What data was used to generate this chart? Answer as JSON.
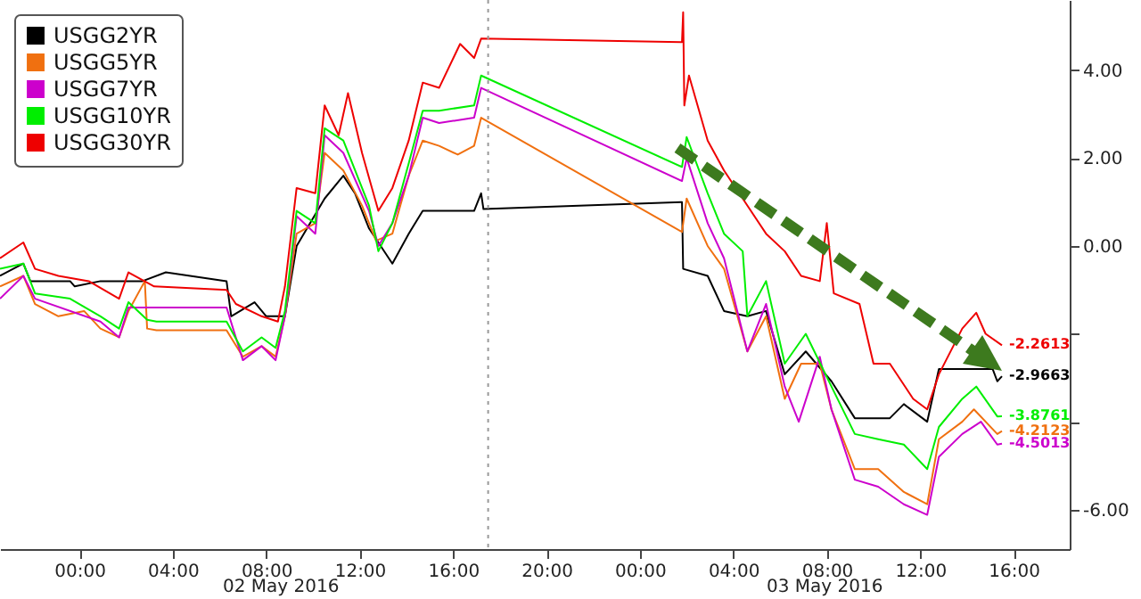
{
  "chart_data": {
    "type": "line",
    "xlim": [
      "2016-05-01T20:36",
      "2016-05-03T18:24"
    ],
    "ylim": [
      -6.9,
      5.6
    ],
    "xticks": [
      {
        "value": "2016-05-02T00:00",
        "label": "00:00"
      },
      {
        "value": "2016-05-02T04:00",
        "label": "04:00"
      },
      {
        "value": "2016-05-02T08:00",
        "label": "08:00"
      },
      {
        "value": "2016-05-02T12:00",
        "label": "12:00"
      },
      {
        "value": "2016-05-02T16:00",
        "label": "16:00"
      },
      {
        "value": "2016-05-02T20:00",
        "label": "20:00"
      },
      {
        "value": "2016-05-03T00:00",
        "label": "00:00"
      },
      {
        "value": "2016-05-03T04:00",
        "label": "04:00"
      },
      {
        "value": "2016-05-03T08:00",
        "label": "08:00"
      },
      {
        "value": "2016-05-03T12:00",
        "label": "12:00"
      },
      {
        "value": "2016-05-03T16:00",
        "label": "16:00"
      }
    ],
    "yticks": [
      {
        "value": 4,
        "label": "4.00"
      },
      {
        "value": 2,
        "label": "2.00"
      },
      {
        "value": 0,
        "label": "0.00"
      },
      {
        "value": -2,
        "label": null
      },
      {
        "value": -4,
        "label": null
      },
      {
        "value": -6,
        "label": "-6.00"
      }
    ],
    "annotations": [
      "02 May 2016",
      "03 May 2016"
    ],
    "ref_lines": [
      {
        "axis": "x",
        "value": "2016-05-02T17:30",
        "label": null,
        "color": "#999999",
        "line_style": "dotted"
      }
    ],
    "legend": "top left",
    "grid": false,
    "marker": "none",
    "line_style": "solid",
    "series": [
      {
        "name": "USGG2YR",
        "color": "#000000",
        "x": [
          "2016-05-01T20:36",
          "2016-05-01T21:36",
          "2016-05-01T21:54",
          "2016-05-01T23:36",
          "2016-05-01T23:48",
          "2016-05-02T00:54",
          "2016-05-02T02:42",
          "2016-05-02T03:42",
          "2016-05-02T06:18",
          "2016-05-02T06:30",
          "2016-05-02T07:30",
          "2016-05-02T08:00",
          "2016-05-02T08:48",
          "2016-05-02T09:18",
          "2016-05-02T10:30",
          "2016-05-02T11:18",
          "2016-05-02T11:48",
          "2016-05-02T12:24",
          "2016-05-02T13:24",
          "2016-05-02T14:06",
          "2016-05-02T14:42",
          "2016-05-02T16:54",
          "2016-05-02T17:12",
          "2016-05-02T17:18",
          "2016-05-03T01:48",
          "2016-05-03T01:51",
          "2016-05-03T02:54",
          "2016-05-03T03:36",
          "2016-05-03T04:36",
          "2016-05-03T05:24",
          "2016-05-03T06:12",
          "2016-05-03T07:06",
          "2016-05-03T08:12",
          "2016-05-03T09:12",
          "2016-05-03T10:42",
          "2016-05-03T11:18",
          "2016-05-03T12:18",
          "2016-05-03T12:48",
          "2016-05-03T15:06",
          "2016-05-03T15:18",
          "2016-05-03T15:30"
        ],
        "values": [
          -0.68,
          -0.4,
          -0.8,
          -0.8,
          -0.92,
          -0.8,
          -0.8,
          -0.6,
          -0.8,
          -1.6,
          -1.28,
          -1.6,
          -1.6,
          0.0,
          1.08,
          1.6,
          1.2,
          0.4,
          -0.4,
          0.28,
          0.8,
          0.8,
          1.2,
          0.84,
          1.0,
          -0.52,
          -0.68,
          -1.48,
          -1.6,
          -1.48,
          -2.92,
          -2.4,
          -3.08,
          -3.92,
          -3.92,
          -3.6,
          -4.0,
          -2.8,
          -2.8,
          -3.08,
          -2.9663
        ],
        "value_labels": [
          null,
          null,
          null,
          null,
          null,
          null,
          null,
          null,
          null,
          null,
          null,
          null,
          null,
          null,
          null,
          null,
          null,
          null,
          null,
          null,
          null,
          null,
          null,
          null,
          null,
          null,
          null,
          null,
          null,
          null,
          null,
          null,
          null,
          null,
          null,
          null,
          null,
          null,
          null,
          null,
          "-2.9663"
        ]
      },
      {
        "name": "USGG5YR",
        "color": "#f07010",
        "x": [
          "2016-05-01T20:36",
          "2016-05-01T21:36",
          "2016-05-01T22:06",
          "2016-05-01T23:06",
          "2016-05-02T00:12",
          "2016-05-02T00:54",
          "2016-05-02T01:42",
          "2016-05-02T02:06",
          "2016-05-02T02:48",
          "2016-05-02T02:54",
          "2016-05-02T03:18",
          "2016-05-02T06:18",
          "2016-05-02T07:00",
          "2016-05-02T07:48",
          "2016-05-02T08:24",
          "2016-05-02T08:48",
          "2016-05-02T09:18",
          "2016-05-02T10:06",
          "2016-05-02T10:30",
          "2016-05-02T11:18",
          "2016-05-02T12:06",
          "2016-05-02T12:42",
          "2016-05-02T13:24",
          "2016-05-02T14:06",
          "2016-05-02T14:42",
          "2016-05-02T15:24",
          "2016-05-02T16:12",
          "2016-05-02T16:54",
          "2016-05-02T17:12",
          "2016-05-03T01:48",
          "2016-05-03T02:00",
          "2016-05-03T02:54",
          "2016-05-03T03:36",
          "2016-05-03T04:36",
          "2016-05-03T05:24",
          "2016-05-03T06:12",
          "2016-05-03T06:54",
          "2016-05-03T07:42",
          "2016-05-03T08:12",
          "2016-05-03T09:12",
          "2016-05-03T10:12",
          "2016-05-03T11:18",
          "2016-05-03T12:18",
          "2016-05-03T12:48",
          "2016-05-03T13:48",
          "2016-05-03T14:18",
          "2016-05-03T15:18",
          "2016-05-03T15:30"
        ],
        "values": [
          -0.92,
          -0.68,
          -1.32,
          -1.6,
          -1.48,
          -1.88,
          -2.08,
          -1.48,
          -0.8,
          -1.88,
          -1.92,
          -1.92,
          -2.52,
          -2.28,
          -2.52,
          -1.6,
          0.28,
          0.52,
          2.12,
          1.72,
          0.92,
          0.12,
          0.28,
          1.6,
          2.4,
          2.28,
          2.08,
          2.28,
          2.92,
          0.32,
          1.08,
          0.0,
          -0.52,
          -2.4,
          -1.6,
          -3.48,
          -2.68,
          -2.68,
          -3.72,
          -5.08,
          -5.08,
          -5.6,
          -5.88,
          -4.4,
          -4.0,
          -3.72,
          -4.28,
          -4.2123
        ],
        "value_labels": [
          null,
          null,
          null,
          null,
          null,
          null,
          null,
          null,
          null,
          null,
          null,
          null,
          null,
          null,
          null,
          null,
          null,
          null,
          null,
          null,
          null,
          null,
          null,
          null,
          null,
          null,
          null,
          null,
          null,
          null,
          null,
          null,
          null,
          null,
          null,
          null,
          null,
          null,
          null,
          null,
          null,
          null,
          null,
          null,
          null,
          null,
          null,
          "-4.2123"
        ]
      },
      {
        "name": "USGG7YR",
        "color": "#cc00cc",
        "x": [
          "2016-05-01T20:36",
          "2016-05-01T21:36",
          "2016-05-01T22:06",
          "2016-05-02T00:54",
          "2016-05-02T01:42",
          "2016-05-02T02:06",
          "2016-05-02T06:18",
          "2016-05-02T07:00",
          "2016-05-02T07:48",
          "2016-05-02T08:24",
          "2016-05-02T08:48",
          "2016-05-02T09:18",
          "2016-05-02T10:06",
          "2016-05-02T10:30",
          "2016-05-02T11:18",
          "2016-05-02T12:24",
          "2016-05-02T12:48",
          "2016-05-02T13:24",
          "2016-05-02T14:06",
          "2016-05-02T14:42",
          "2016-05-02T15:24",
          "2016-05-02T16:54",
          "2016-05-02T17:12",
          "2016-05-03T01:48",
          "2016-05-03T02:00",
          "2016-05-03T02:54",
          "2016-05-03T03:36",
          "2016-05-03T04:36",
          "2016-05-03T05:24",
          "2016-05-03T06:12",
          "2016-05-03T06:48",
          "2016-05-03T07:42",
          "2016-05-03T08:12",
          "2016-05-03T09:12",
          "2016-05-03T10:12",
          "2016-05-03T11:18",
          "2016-05-03T12:18",
          "2016-05-03T12:48",
          "2016-05-03T13:48",
          "2016-05-03T14:36",
          "2016-05-03T15:18",
          "2016-05-03T15:30"
        ],
        "values": [
          -1.2,
          -0.68,
          -1.2,
          -1.72,
          -2.08,
          -1.4,
          -1.4,
          -2.6,
          -2.28,
          -2.6,
          -1.6,
          0.68,
          0.28,
          2.52,
          2.12,
          0.8,
          0.0,
          0.52,
          1.6,
          2.92,
          2.8,
          2.92,
          3.6,
          1.48,
          2.0,
          0.52,
          -0.28,
          -2.4,
          -1.32,
          -3.2,
          -4.0,
          -2.52,
          -3.72,
          -5.32,
          -5.48,
          -5.88,
          -6.12,
          -4.8,
          -4.28,
          -4.0,
          -4.52,
          -4.5013
        ],
        "value_labels": [
          null,
          null,
          null,
          null,
          null,
          null,
          null,
          null,
          null,
          null,
          null,
          null,
          null,
          null,
          null,
          null,
          null,
          null,
          null,
          null,
          null,
          null,
          null,
          null,
          null,
          null,
          null,
          null,
          null,
          null,
          null,
          null,
          null,
          null,
          null,
          null,
          null,
          null,
          null,
          null,
          null,
          "-4.5013"
        ]
      },
      {
        "name": "USGG10YR",
        "color": "#00ee00",
        "x": [
          "2016-05-01T20:36",
          "2016-05-01T21:36",
          "2016-05-01T22:06",
          "2016-05-01T23:36",
          "2016-05-02T00:54",
          "2016-05-02T01:42",
          "2016-05-02T02:06",
          "2016-05-02T02:54",
          "2016-05-02T03:18",
          "2016-05-02T06:18",
          "2016-05-02T07:00",
          "2016-05-02T07:48",
          "2016-05-02T08:24",
          "2016-05-02T08:48",
          "2016-05-02T09:18",
          "2016-05-02T10:06",
          "2016-05-02T10:30",
          "2016-05-02T11:18",
          "2016-05-02T12:24",
          "2016-05-02T12:48",
          "2016-05-02T13:24",
          "2016-05-02T14:06",
          "2016-05-02T14:42",
          "2016-05-02T15:24",
          "2016-05-02T16:54",
          "2016-05-02T17:12",
          "2016-05-03T01:48",
          "2016-05-03T02:00",
          "2016-05-03T02:54",
          "2016-05-03T03:36",
          "2016-05-03T04:24",
          "2016-05-03T04:36",
          "2016-05-03T05:24",
          "2016-05-03T06:12",
          "2016-05-03T07:06",
          "2016-05-03T08:12",
          "2016-05-03T09:12",
          "2016-05-03T10:12",
          "2016-05-03T11:18",
          "2016-05-03T12:18",
          "2016-05-03T12:48",
          "2016-05-03T13:48",
          "2016-05-03T14:24",
          "2016-05-03T15:18",
          "2016-05-03T15:30"
        ],
        "values": [
          -0.52,
          -0.4,
          -1.08,
          -1.2,
          -1.6,
          -1.88,
          -1.28,
          -1.68,
          -1.72,
          -1.72,
          -2.4,
          -2.08,
          -2.32,
          -1.48,
          0.8,
          0.52,
          2.68,
          2.4,
          0.92,
          -0.12,
          0.52,
          1.88,
          3.08,
          3.08,
          3.2,
          3.88,
          1.8,
          2.48,
          1.2,
          0.28,
          -0.12,
          -1.6,
          -0.8,
          -2.68,
          -2.0,
          -3.2,
          -4.28,
          -4.4,
          -4.52,
          -5.08,
          -4.12,
          -3.48,
          -3.2,
          -3.88,
          -3.8761
        ],
        "value_labels": [
          null,
          null,
          null,
          null,
          null,
          null,
          null,
          null,
          null,
          null,
          null,
          null,
          null,
          null,
          null,
          null,
          null,
          null,
          null,
          null,
          null,
          null,
          null,
          null,
          null,
          null,
          null,
          null,
          null,
          null,
          null,
          null,
          null,
          null,
          null,
          null,
          null,
          null,
          null,
          null,
          null,
          null,
          null,
          null,
          "-3.8761"
        ]
      },
      {
        "name": "USGG30YR",
        "color": "#ee0000",
        "x": [
          "2016-05-01T20:36",
          "2016-05-01T21:36",
          "2016-05-01T22:06",
          "2016-05-01T23:06",
          "2016-05-02T00:24",
          "2016-05-02T01:42",
          "2016-05-02T02:06",
          "2016-05-02T03:12",
          "2016-05-02T06:18",
          "2016-05-02T06:42",
          "2016-05-02T07:48",
          "2016-05-02T08:30",
          "2016-05-02T08:48",
          "2016-05-02T09:18",
          "2016-05-02T10:06",
          "2016-05-02T10:30",
          "2016-05-02T11:06",
          "2016-05-02T11:30",
          "2016-05-02T12:06",
          "2016-05-02T12:48",
          "2016-05-02T13:24",
          "2016-05-02T14:06",
          "2016-05-02T14:42",
          "2016-05-02T15:24",
          "2016-05-02T16:18",
          "2016-05-02T16:54",
          "2016-05-02T17:12",
          "2016-05-03T01:48",
          "2016-05-03T01:51",
          "2016-05-03T01:54",
          "2016-05-03T02:06",
          "2016-05-03T02:54",
          "2016-05-03T03:36",
          "2016-05-03T04:24",
          "2016-05-03T05:24",
          "2016-05-03T06:12",
          "2016-05-03T06:54",
          "2016-05-03T07:42",
          "2016-05-03T08:00",
          "2016-05-03T08:18",
          "2016-05-03T09:24",
          "2016-05-03T10:00",
          "2016-05-03T10:42",
          "2016-05-03T11:42",
          "2016-05-03T12:18",
          "2016-05-03T12:48",
          "2016-05-03T13:48",
          "2016-05-03T14:24",
          "2016-05-03T14:48",
          "2016-05-03T15:30"
        ],
        "values": [
          -0.28,
          0.08,
          -0.52,
          -0.68,
          -0.8,
          -1.2,
          -0.6,
          -0.92,
          -1.0,
          -1.32,
          -1.6,
          -1.72,
          -0.92,
          1.32,
          1.2,
          3.2,
          2.52,
          3.48,
          2.12,
          0.8,
          1.32,
          2.4,
          3.72,
          3.6,
          4.6,
          4.28,
          4.72,
          4.64,
          5.32,
          3.2,
          3.88,
          2.4,
          1.72,
          1.08,
          0.28,
          -0.12,
          -0.68,
          -0.8,
          0.52,
          -1.08,
          -1.32,
          -2.68,
          -2.68,
          -3.48,
          -3.72,
          -2.92,
          -1.88,
          -1.52,
          -2.0,
          -2.2613
        ],
        "value_labels": [
          null,
          null,
          null,
          null,
          null,
          null,
          null,
          null,
          null,
          null,
          null,
          null,
          null,
          null,
          null,
          null,
          null,
          null,
          null,
          null,
          null,
          null,
          null,
          null,
          null,
          null,
          null,
          null,
          null,
          null,
          null,
          null,
          null,
          null,
          null,
          null,
          null,
          null,
          null,
          null,
          null,
          null,
          null,
          null,
          null,
          null,
          null,
          null,
          null,
          "-2.2613"
        ]
      }
    ]
  }
}
